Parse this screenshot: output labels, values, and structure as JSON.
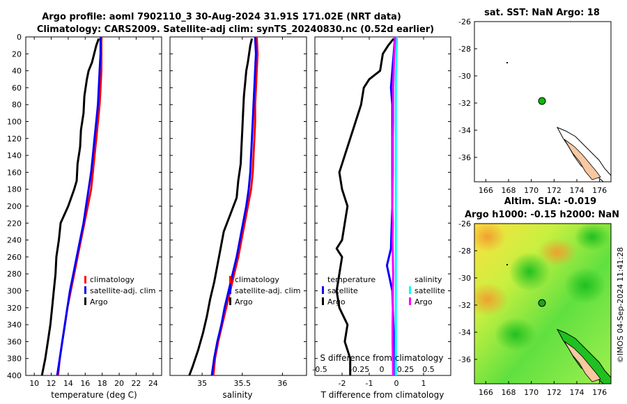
{
  "header": {
    "title_line1": "Argo profile: aoml 7902110_3 30-Aug-2024 31.91S 171.02E (NRT data)",
    "title_line2": "Climatology: CARS2009. Satellite-adj clim: synTS_20240830.nc (0.52d earlier)"
  },
  "colors": {
    "clim": "#ff0000",
    "sat": "#0000ff",
    "argo": "#000000",
    "sat_salinity": "#00ffff",
    "argo_salinity": "#ff00ff",
    "land": "#f8c8a0"
  },
  "depth_axis": {
    "ticks": [
      "0",
      "20",
      "40",
      "60",
      "80",
      "100",
      "120",
      "140",
      "160",
      "180",
      "200",
      "220",
      "240",
      "260",
      "280",
      "300",
      "320",
      "340",
      "360",
      "380",
      "400"
    ]
  },
  "chart_data": [
    {
      "type": "line",
      "name": "temperature-profile",
      "xlabel": "temperature (deg C)",
      "xlim": [
        9,
        25
      ],
      "ylim": [
        400,
        0
      ],
      "x_ticks": [
        "10",
        "12",
        "14",
        "16",
        "18",
        "20",
        "22",
        "24"
      ],
      "x_tick_values": [
        10,
        12,
        14,
        16,
        18,
        20,
        22,
        24
      ],
      "legend": [
        "climatology",
        "satellite-adj. clim",
        "Argo"
      ],
      "series": [
        {
          "name": "climatology",
          "color": "#ff0000",
          "depth": [
            0,
            20,
            40,
            60,
            80,
            100,
            120,
            140,
            160,
            180,
            200,
            220,
            240,
            260,
            280,
            300,
            320,
            340,
            360,
            380,
            400
          ],
          "values": [
            17.9,
            17.9,
            17.9,
            17.8,
            17.7,
            17.5,
            17.3,
            17.1,
            16.9,
            16.7,
            16.3,
            15.9,
            15.5,
            15.1,
            14.7,
            14.3,
            13.9,
            13.6,
            13.3,
            13.0,
            12.8
          ]
        },
        {
          "name": "satellite-adj. clim",
          "color": "#0000ff",
          "depth": [
            0,
            20,
            40,
            60,
            80,
            100,
            120,
            140,
            160,
            180,
            200,
            220,
            240,
            260,
            280,
            300,
            320,
            340,
            360,
            380,
            400
          ],
          "values": [
            17.8,
            17.8,
            17.7,
            17.6,
            17.5,
            17.3,
            17.1,
            16.9,
            16.7,
            16.4,
            16.1,
            15.8,
            15.4,
            15.0,
            14.6,
            14.2,
            13.9,
            13.6,
            13.3,
            13.0,
            12.7
          ]
        },
        {
          "name": "Argo",
          "color": "#000000",
          "depth": [
            2,
            10,
            30,
            40,
            50,
            70,
            90,
            110,
            130,
            150,
            170,
            180,
            200,
            220,
            240,
            260,
            280,
            300,
            320,
            340,
            360,
            380,
            400
          ],
          "values": [
            17.6,
            17.3,
            16.8,
            16.4,
            16.2,
            15.9,
            15.8,
            15.5,
            15.4,
            15.1,
            15.0,
            14.7,
            14.0,
            13.1,
            12.9,
            12.6,
            12.5,
            12.3,
            12.1,
            11.9,
            11.6,
            11.3,
            10.9
          ]
        }
      ]
    },
    {
      "type": "line",
      "name": "salinity-profile",
      "xlabel": "salinity",
      "xlim": [
        34.6,
        36.3
      ],
      "ylim": [
        400,
        0
      ],
      "x_ticks": [
        "35",
        "35.5",
        "36"
      ],
      "x_tick_values": [
        35,
        35.5,
        36
      ],
      "legend": [
        "climatology",
        "satellite-adj. clim",
        "Argo"
      ],
      "series": [
        {
          "name": "climatology",
          "color": "#ff0000",
          "depth": [
            0,
            20,
            40,
            60,
            80,
            100,
            120,
            140,
            160,
            180,
            200,
            220,
            240,
            260,
            280,
            300,
            320,
            340,
            360,
            380,
            400
          ],
          "values": [
            35.68,
            35.69,
            35.68,
            35.67,
            35.66,
            35.66,
            35.65,
            35.64,
            35.63,
            35.61,
            35.57,
            35.53,
            35.49,
            35.45,
            35.4,
            35.35,
            35.3,
            35.25,
            35.2,
            35.16,
            35.14
          ]
        },
        {
          "name": "satellite-adj. clim",
          "color": "#0000ff",
          "depth": [
            0,
            20,
            40,
            60,
            80,
            100,
            120,
            140,
            160,
            180,
            200,
            220,
            240,
            260,
            280,
            300,
            320,
            340,
            360,
            380,
            400
          ],
          "values": [
            35.66,
            35.67,
            35.66,
            35.65,
            35.64,
            35.63,
            35.62,
            35.61,
            35.6,
            35.58,
            35.55,
            35.51,
            35.47,
            35.43,
            35.38,
            35.33,
            35.28,
            35.24,
            35.19,
            35.15,
            35.12
          ]
        },
        {
          "name": "Argo",
          "color": "#000000",
          "depth": [
            2,
            10,
            30,
            40,
            50,
            70,
            90,
            110,
            130,
            150,
            170,
            190,
            210,
            230,
            250,
            270,
            290,
            310,
            330,
            350,
            370,
            390,
            400
          ],
          "values": [
            35.62,
            35.6,
            35.57,
            35.55,
            35.54,
            35.52,
            35.51,
            35.5,
            35.49,
            35.48,
            35.45,
            35.43,
            35.35,
            35.27,
            35.23,
            35.19,
            35.15,
            35.1,
            35.06,
            35.01,
            34.95,
            34.88,
            34.84
          ]
        }
      ]
    },
    {
      "type": "line",
      "name": "difference-profile",
      "xlabel": "T difference from climatology",
      "xlabel_top": "S difference from climatology",
      "xlim": [
        -3,
        2
      ],
      "ylim": [
        400,
        0
      ],
      "x_ticks": [
        "-2",
        "-1",
        "0",
        "1"
      ],
      "x_tick_values": [
        -2,
        -1,
        0,
        1
      ],
      "s_ticks": [
        "-0.5",
        "-0.25",
        "0",
        "0.25",
        "0.5"
      ],
      "legend_t_title": "temperature",
      "legend_s_title": "salinity",
      "legend_t": [
        "satellite",
        "Argo"
      ],
      "legend_s": [
        "satellite",
        "Argo"
      ],
      "series": [
        {
          "name": "T satellite",
          "color": "#0000ff",
          "depth": [
            0,
            20,
            40,
            60,
            80,
            100,
            150,
            200,
            250,
            270,
            300,
            350,
            400
          ],
          "values": [
            -0.05,
            -0.1,
            -0.15,
            -0.2,
            -0.15,
            -0.15,
            -0.15,
            -0.15,
            -0.2,
            -0.35,
            -0.15,
            -0.1,
            -0.1
          ]
        },
        {
          "name": "T Argo",
          "color": "#000000",
          "depth": [
            2,
            10,
            20,
            40,
            50,
            60,
            80,
            100,
            120,
            140,
            160,
            180,
            200,
            220,
            240,
            250,
            260,
            280,
            300,
            320,
            340,
            360,
            380,
            400
          ],
          "values": [
            -0.1,
            -0.3,
            -0.5,
            -0.6,
            -1.0,
            -1.2,
            -1.3,
            -1.5,
            -1.7,
            -1.9,
            -2.1,
            -2.0,
            -1.8,
            -1.9,
            -2.0,
            -2.2,
            -2.0,
            -2.1,
            -2.2,
            -2.1,
            -1.8,
            -1.9,
            -1.7,
            -1.7
          ]
        },
        {
          "name": "S satellite",
          "color": "#00ffff",
          "depth": [
            0,
            50,
            100,
            150,
            200,
            250,
            300,
            350,
            400
          ],
          "values": [
            0.02,
            -0.02,
            -0.02,
            -0.02,
            -0.02,
            -0.02,
            -0.02,
            -0.02,
            -0.02
          ]
        },
        {
          "name": "S Argo",
          "color": "#ff00ff",
          "depth": [
            0,
            20,
            40,
            60,
            80,
            100,
            120,
            140,
            160,
            180,
            200,
            220,
            240,
            260,
            280,
            300,
            320,
            340,
            360,
            380,
            400
          ],
          "values": [
            -0.04,
            -0.08,
            -0.1,
            -0.12,
            -0.12,
            -0.12,
            -0.13,
            -0.13,
            -0.13,
            -0.14,
            -0.15,
            -0.13,
            -0.14,
            -0.13,
            -0.12,
            -0.13,
            -0.13,
            -0.14,
            -0.14,
            -0.13,
            -0.12
          ]
        }
      ]
    }
  ],
  "maps": {
    "sst": {
      "title": "sat. SST: NaN Argo: 18",
      "x_ticks": [
        "166",
        "168",
        "170",
        "172",
        "174",
        "176"
      ],
      "y_ticks": [
        "-26",
        "-28",
        "-30",
        "-32",
        "-34",
        "-36"
      ],
      "float_position": {
        "lon": 171.02,
        "lat": -31.91
      }
    },
    "sla": {
      "title_line1": "Altim. SLA: -0.019",
      "title_line2": "Argo h1000: -0.15 h2000: NaN",
      "x_ticks": [
        "166",
        "168",
        "170",
        "172",
        "174",
        "176"
      ],
      "y_ticks": [
        "-26",
        "-28",
        "-30",
        "-32",
        "-34",
        "-36"
      ],
      "float_position": {
        "lon": 171.02,
        "lat": -31.91
      }
    },
    "lon_range": [
      165,
      177
    ],
    "lat_range": [
      -37.8,
      -26
    ]
  },
  "footer": {
    "credit": "©IMOS 04-Sep-2024 11:41:28"
  }
}
